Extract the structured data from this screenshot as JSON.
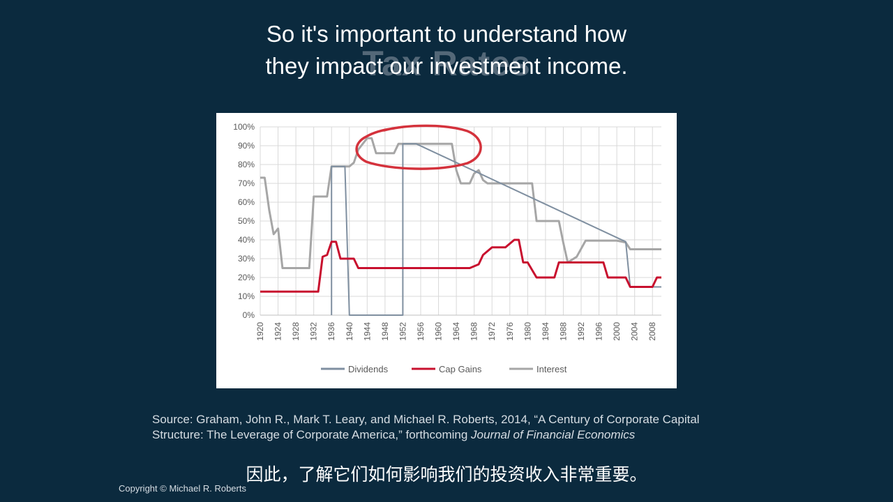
{
  "slide": {
    "title": "Tax Rates",
    "caption_en_line1": "So it's important to understand how",
    "caption_en_line2": "they impact our investment income.",
    "caption_zh": "因此，了解它们如何影响我们的投资收入非常重要。",
    "source_prefix": "Source: Graham, John R., Mark T. Leary, and Michael R. Roberts, 2014, “A Century of Corporate Capital Structure: The Leverage of Corporate America,” forthcoming",
    "source_journal": "Journal of Financial Economics",
    "copyright": "Copyright © Michael R. Roberts",
    "annotation_color": "#d4323c"
  },
  "chart_data": {
    "type": "line",
    "x_ticks": [
      "1920",
      "1924",
      "1928",
      "1932",
      "1936",
      "1940",
      "1944",
      "1948",
      "1952",
      "1956",
      "1960",
      "1964",
      "1968",
      "1972",
      "1976",
      "1980",
      "1984",
      "1988",
      "1992",
      "1996",
      "2000",
      "2004",
      "2008"
    ],
    "y_ticks": [
      "100%",
      "90%",
      "80%",
      "70%",
      "60%",
      "50%",
      "40%",
      "30%",
      "20%",
      "10%",
      "0%"
    ],
    "xlim": [
      1920,
      2010
    ],
    "ylim": [
      0,
      100
    ],
    "grid": true,
    "legend_position": "bottom",
    "series": [
      {
        "name": "Dividends",
        "color": "#7f8fa0",
        "points": [
          [
            1936,
            0
          ],
          [
            1936,
            79
          ],
          [
            1939,
            79
          ],
          [
            1939,
            79
          ],
          [
            1940,
            0
          ],
          [
            1952,
            0
          ],
          [
            1952,
            91
          ],
          [
            1955,
            91
          ],
          [
            2002,
            39
          ],
          [
            2003,
            15
          ],
          [
            2010,
            15
          ]
        ]
      },
      {
        "name": "Cap Gains",
        "color": "#c8102e",
        "points": [
          [
            1920,
            12.5
          ],
          [
            1933,
            12.5
          ],
          [
            1934,
            31
          ],
          [
            1935,
            32
          ],
          [
            1936,
            39
          ],
          [
            1937,
            39
          ],
          [
            1938,
            30
          ],
          [
            1941,
            30
          ],
          [
            1942,
            25
          ],
          [
            1967,
            25
          ],
          [
            1969,
            27
          ],
          [
            1970,
            32
          ],
          [
            1972,
            36
          ],
          [
            1975,
            36
          ],
          [
            1977,
            40
          ],
          [
            1978,
            40
          ],
          [
            1979,
            28
          ],
          [
            1980,
            28
          ],
          [
            1982,
            20
          ],
          [
            1986,
            20
          ],
          [
            1987,
            28
          ],
          [
            1997,
            28
          ],
          [
            1998,
            20
          ],
          [
            2002,
            20
          ],
          [
            2003,
            15
          ],
          [
            2008,
            15
          ],
          [
            2009,
            20
          ],
          [
            2010,
            20
          ]
        ]
      },
      {
        "name": "Interest",
        "color": "#a6a6a6",
        "points": [
          [
            1920,
            73
          ],
          [
            1921,
            73
          ],
          [
            1922,
            56
          ],
          [
            1923,
            43
          ],
          [
            1924,
            46
          ],
          [
            1925,
            25
          ],
          [
            1931,
            25
          ],
          [
            1932,
            63
          ],
          [
            1935,
            63
          ],
          [
            1936,
            79
          ],
          [
            1940,
            79
          ],
          [
            1941,
            81
          ],
          [
            1942,
            88
          ],
          [
            1944,
            94
          ],
          [
            1945,
            94
          ],
          [
            1946,
            86
          ],
          [
            1950,
            86
          ],
          [
            1951,
            91
          ],
          [
            1954,
            91
          ],
          [
            1955,
            91
          ],
          [
            1963,
            91
          ],
          [
            1964,
            77
          ],
          [
            1965,
            70
          ],
          [
            1967,
            70
          ],
          [
            1968,
            75.25
          ],
          [
            1969,
            77
          ],
          [
            1970,
            71.75
          ],
          [
            1971,
            70
          ],
          [
            1981,
            70
          ],
          [
            1982,
            50
          ],
          [
            1987,
            50
          ],
          [
            1988,
            38.5
          ],
          [
            1989,
            28
          ],
          [
            1991,
            31
          ],
          [
            1993,
            39.6
          ],
          [
            2000,
            39.6
          ],
          [
            2001,
            39.1
          ],
          [
            2002,
            38.6
          ],
          [
            2003,
            35
          ],
          [
            2010,
            35
          ]
        ]
      }
    ]
  }
}
